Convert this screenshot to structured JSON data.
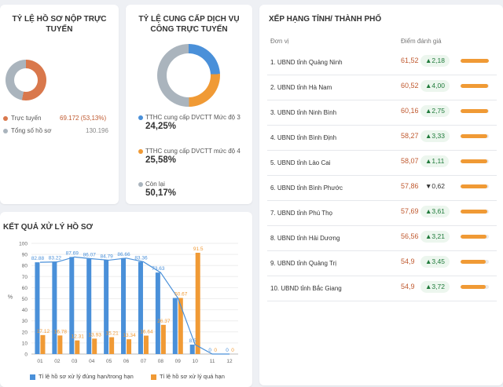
{
  "submission": {
    "title": "TỶ LỆ HỒ SƠ NỘP TRỰC TUYẾN",
    "legend": [
      {
        "label": "Trực tuyến",
        "value": "69.172 (53,13%)",
        "color": "#d9784c"
      },
      {
        "label": "Tổng số hồ sơ",
        "value": "130.196",
        "color": "#aab4bd"
      }
    ],
    "online_fraction": 0.5313
  },
  "services": {
    "title": "TỶ LỆ CUNG CẤP DỊCH VỤ CÔNG TRỰC TUYẾN",
    "legend": [
      {
        "label": "TTHC cung cấp DVCTT Mức độ 3",
        "percent": "24,25%",
        "fraction": 0.2425,
        "color": "#4a90d9"
      },
      {
        "label": "TTHC cung cấp DVCTT mức độ 4",
        "percent": "25,58%",
        "fraction": 0.2558,
        "color": "#f09a35"
      },
      {
        "label": "Còn lại",
        "percent": "50,17%",
        "fraction": 0.5017,
        "color": "#aab4bd"
      }
    ]
  },
  "ranking": {
    "title": "XẾP HẠNG TỈNH/ THÀNH PHỐ",
    "col_unit": "Đơn vị",
    "col_score": "Điểm đánh giá",
    "rows": [
      {
        "name": "1. UBND tỉnh Quảng Ninh",
        "score": "61,52",
        "change": "▲2,18",
        "dir": "up",
        "level": 1.0
      },
      {
        "name": "2. UBND tỉnh Hà Nam",
        "score": "60,52",
        "change": "▲4,00",
        "dir": "up",
        "level": 0.98
      },
      {
        "name": "3. UBND tỉnh Ninh Bình",
        "score": "60,16",
        "change": "▲2,75",
        "dir": "up",
        "level": 0.97
      },
      {
        "name": "4. UBND tỉnh Bình Định",
        "score": "58,27",
        "change": "▲3,33",
        "dir": "up",
        "level": 0.95
      },
      {
        "name": "5. UBND tỉnh Lào Cai",
        "score": "58,07",
        "change": "▲1,11",
        "dir": "up",
        "level": 0.94
      },
      {
        "name": "6. UBND tỉnh Bình Phước",
        "score": "57,86",
        "change": "▼0,62",
        "dir": "down",
        "level": 0.94
      },
      {
        "name": "7. UBND tỉnh Phú Thọ",
        "score": "57,69",
        "change": "▲3,61",
        "dir": "up",
        "level": 0.94
      },
      {
        "name": "8. UBND tỉnh Hải Dương",
        "score": "56,56",
        "change": "▲3,21",
        "dir": "up",
        "level": 0.92
      },
      {
        "name": "9. UBND tỉnh Quảng Trị",
        "score": "54,9",
        "change": "▲3,45",
        "dir": "up",
        "level": 0.89
      },
      {
        "name": "10. UBND tỉnh Bắc Giang",
        "score": "54,9",
        "change": "▲3,72",
        "dir": "up",
        "level": 0.89
      }
    ]
  },
  "results": {
    "title": "KẾT QUẢ XỬ LÝ HỒ SƠ"
  },
  "chart_data": {
    "type": "bar",
    "categories": [
      "01",
      "02",
      "03",
      "04",
      "05",
      "06",
      "07",
      "08",
      "09",
      "10",
      "11",
      "12"
    ],
    "series": [
      {
        "name": "Tỉ lệ hồ sơ xử lý đúng hạn/trong hạn",
        "color": "#4a90d9",
        "values": [
          82.88,
          83.22,
          87.69,
          86.07,
          84.79,
          86.66,
          83.36,
          73.63,
          50.67,
          8.5,
          0,
          0
        ]
      },
      {
        "name": "Tỉ lệ hồ sơ xử lý quá hạn",
        "color": "#f09a35",
        "values": [
          17.12,
          16.78,
          12.31,
          13.93,
          15.21,
          13.34,
          16.64,
          26.37,
          50.67,
          91.5,
          0,
          0
        ]
      }
    ],
    "labels_blue": [
      "82.88",
      "83.22",
      "87.69",
      "86.07",
      "84.79",
      "86.66",
      "83.36",
      "73.63",
      "",
      "8.5",
      "0",
      "0"
    ],
    "labels_orange": [
      "17.12",
      "16.78",
      "12.31",
      "13.93",
      "15.21",
      "13.34",
      "16.64",
      "26.37",
      "50.67",
      "91.5",
      "0",
      "0"
    ],
    "line_values": [
      82.88,
      83.22,
      87.69,
      86.07,
      84.79,
      86.66,
      83.36,
      73.63,
      50.67,
      8.5,
      0,
      0
    ],
    "yticks": [
      "100",
      "90",
      "80",
      "70",
      "60",
      "50",
      "40",
      "30",
      "20",
      "10",
      "0"
    ],
    "ylabel": "%",
    "ylim": [
      0,
      100
    ],
    "grid": true,
    "legend_position": "bottom"
  }
}
